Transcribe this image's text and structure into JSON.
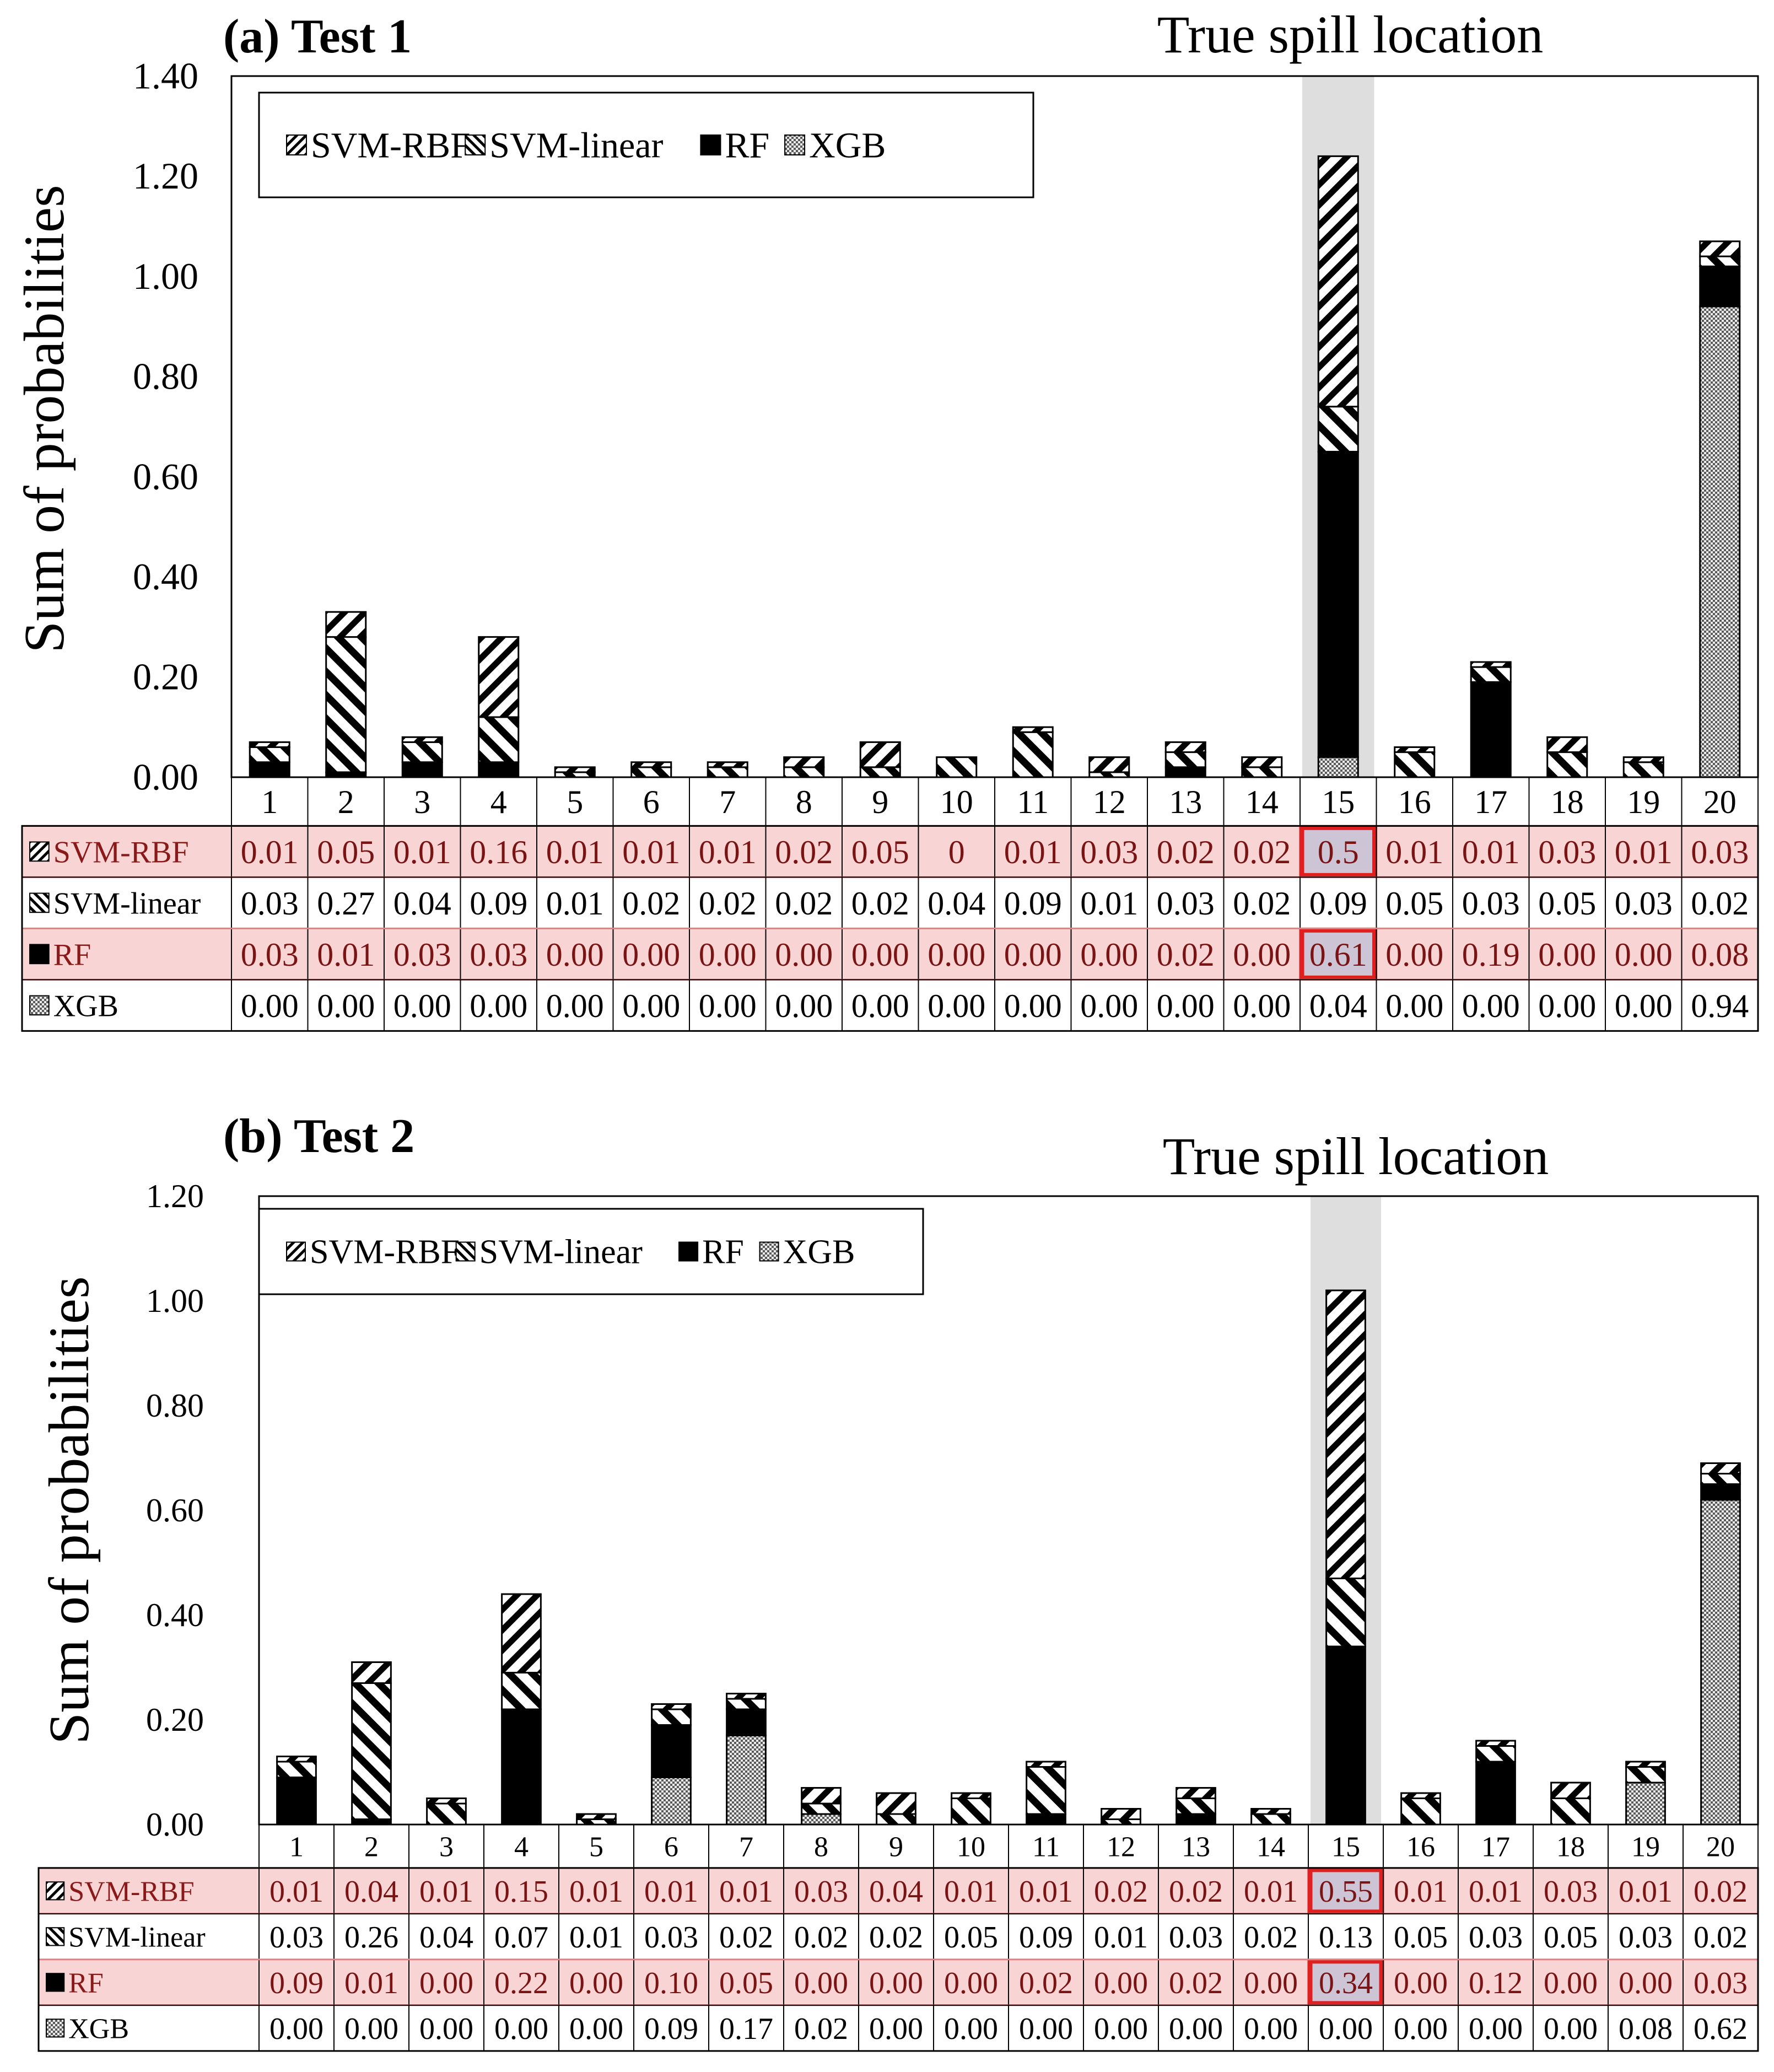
{
  "colors": {
    "highlight_row": "#f9d4d4",
    "highlight_cell": "#cdc4d6",
    "highlight_border": "#e02020",
    "shade": "#dedede"
  },
  "chart_data": [
    {
      "type": "bar",
      "stacked": true,
      "title": "(a) Test 1",
      "annotation": "True spill location",
      "ylabel": "Sum of probabilities",
      "ylim": [
        0,
        1.4
      ],
      "yticks": [
        "0.00",
        "0.20",
        "0.40",
        "0.60",
        "0.80",
        "1.00",
        "1.20",
        "1.40"
      ],
      "categories": [
        "1",
        "2",
        "3",
        "4",
        "5",
        "6",
        "7",
        "8",
        "9",
        "10",
        "11",
        "12",
        "13",
        "14",
        "15",
        "16",
        "17",
        "18",
        "19",
        "20"
      ],
      "highlight_category": "15",
      "series": [
        {
          "name": "SVM-RBF",
          "pattern": "rbf",
          "highlight": true,
          "labels": [
            "0.01",
            "0.05",
            "0.01",
            "0.16",
            "0.01",
            "0.01",
            "0.01",
            "0.02",
            "0.05",
            "0",
            "0.01",
            "0.03",
            "0.02",
            "0.02",
            "0.5",
            "0.01",
            "0.01",
            "0.03",
            "0.01",
            "0.03"
          ]
        },
        {
          "name": "SVM-linear",
          "pattern": "linear",
          "highlight": false,
          "labels": [
            "0.03",
            "0.27",
            "0.04",
            "0.09",
            "0.01",
            "0.02",
            "0.02",
            "0.02",
            "0.02",
            "0.04",
            "0.09",
            "0.01",
            "0.03",
            "0.02",
            "0.09",
            "0.05",
            "0.03",
            "0.05",
            "0.03",
            "0.02"
          ]
        },
        {
          "name": "RF",
          "pattern": "solid",
          "highlight": true,
          "labels": [
            "0.03",
            "0.01",
            "0.03",
            "0.03",
            "0.00",
            "0.00",
            "0.00",
            "0.00",
            "0.00",
            "0.00",
            "0.00",
            "0.00",
            "0.02",
            "0.00",
            "0.61",
            "0.00",
            "0.19",
            "0.00",
            "0.00",
            "0.08"
          ]
        },
        {
          "name": "XGB",
          "pattern": "xgb",
          "highlight": false,
          "labels": [
            "0.00",
            "0.00",
            "0.00",
            "0.00",
            "0.00",
            "0.00",
            "0.00",
            "0.00",
            "0.00",
            "0.00",
            "0.00",
            "0.00",
            "0.00",
            "0.00",
            "0.04",
            "0.00",
            "0.00",
            "0.00",
            "0.00",
            "0.94"
          ]
        }
      ]
    },
    {
      "type": "bar",
      "stacked": true,
      "title": "(b) Test 2",
      "annotation": "True spill location",
      "ylabel": "Sum of probabilities",
      "ylim": [
        0,
        1.2
      ],
      "yticks": [
        "0.00",
        "0.20",
        "0.40",
        "0.60",
        "0.80",
        "1.00",
        "1.20"
      ],
      "categories": [
        "1",
        "2",
        "3",
        "4",
        "5",
        "6",
        "7",
        "8",
        "9",
        "10",
        "11",
        "12",
        "13",
        "14",
        "15",
        "16",
        "17",
        "18",
        "19",
        "20"
      ],
      "highlight_category": "15",
      "series": [
        {
          "name": "SVM-RBF",
          "pattern": "rbf",
          "highlight": true,
          "labels": [
            "0.01",
            "0.04",
            "0.01",
            "0.15",
            "0.01",
            "0.01",
            "0.01",
            "0.03",
            "0.04",
            "0.01",
            "0.01",
            "0.02",
            "0.02",
            "0.01",
            "0.55",
            "0.01",
            "0.01",
            "0.03",
            "0.01",
            "0.02"
          ]
        },
        {
          "name": "SVM-linear",
          "pattern": "linear",
          "highlight": false,
          "labels": [
            "0.03",
            "0.26",
            "0.04",
            "0.07",
            "0.01",
            "0.03",
            "0.02",
            "0.02",
            "0.02",
            "0.05",
            "0.09",
            "0.01",
            "0.03",
            "0.02",
            "0.13",
            "0.05",
            "0.03",
            "0.05",
            "0.03",
            "0.02"
          ]
        },
        {
          "name": "RF",
          "pattern": "solid",
          "highlight": true,
          "labels": [
            "0.09",
            "0.01",
            "0.00",
            "0.22",
            "0.00",
            "0.10",
            "0.05",
            "0.00",
            "0.00",
            "0.00",
            "0.02",
            "0.00",
            "0.02",
            "0.00",
            "0.34",
            "0.00",
            "0.12",
            "0.00",
            "0.00",
            "0.03"
          ]
        },
        {
          "name": "XGB",
          "pattern": "xgb",
          "highlight": false,
          "labels": [
            "0.00",
            "0.00",
            "0.00",
            "0.00",
            "0.00",
            "0.09",
            "0.17",
            "0.02",
            "0.00",
            "0.00",
            "0.00",
            "0.00",
            "0.00",
            "0.00",
            "0.00",
            "0.00",
            "0.00",
            "0.00",
            "0.08",
            "0.62"
          ]
        }
      ]
    }
  ]
}
